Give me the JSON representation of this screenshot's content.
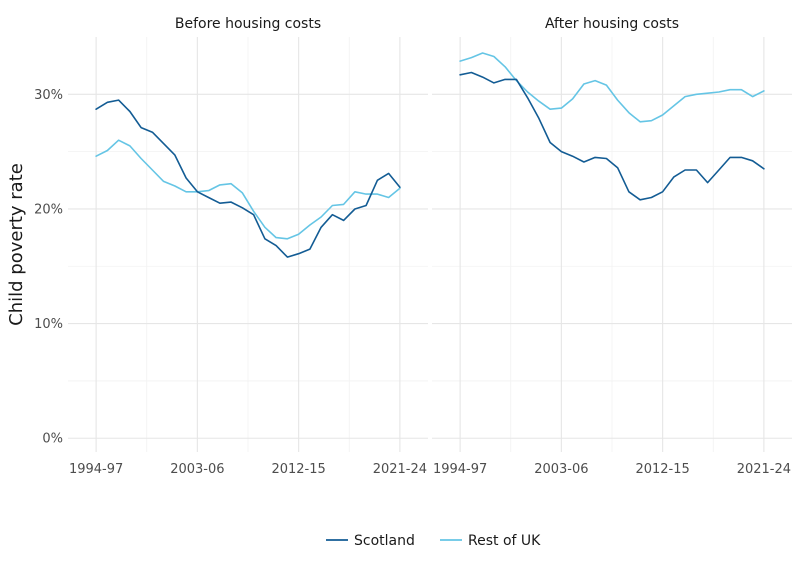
{
  "chart_data": {
    "type": "line",
    "ylabel": "Child poverty rate",
    "ylim": [
      -0.012,
      0.35
    ],
    "yticks": [
      0,
      0.1,
      0.2,
      0.3
    ],
    "ytick_labels": [
      "0%",
      "10%",
      "20%",
      "30%"
    ],
    "xticks": [
      0,
      9,
      18,
      27
    ],
    "xtick_labels": [
      "1994-97",
      "2003-06",
      "2012-15",
      "2021-24"
    ],
    "xlim": [
      -2.5,
      29.5
    ],
    "legend_position": "bottom",
    "series_styles": [
      {
        "name": "Scotland",
        "color": "#135c94"
      },
      {
        "name": "Rest of UK",
        "color": "#65c5e5"
      }
    ],
    "panels": [
      {
        "title": "Before housing costs",
        "series": [
          {
            "name": "Scotland",
            "values": [
              0.287,
              0.293,
              0.295,
              0.285,
              0.271,
              0.267,
              0.257,
              0.247,
              0.227,
              0.215,
              0.21,
              0.205,
              0.206,
              0.201,
              0.195,
              0.174,
              0.168,
              0.158,
              0.161,
              0.165,
              0.184,
              0.195,
              0.19,
              0.2,
              0.203,
              0.225,
              0.231,
              0.219
            ]
          },
          {
            "name": "Rest of UK",
            "values": [
              0.246,
              0.251,
              0.26,
              0.255,
              0.244,
              0.234,
              0.224,
              0.22,
              0.215,
              0.215,
              0.216,
              0.221,
              0.222,
              0.214,
              0.198,
              0.184,
              0.175,
              0.174,
              0.178,
              0.186,
              0.193,
              0.203,
              0.204,
              0.215,
              0.213,
              0.213,
              0.21,
              0.218
            ]
          }
        ]
      },
      {
        "title": "After housing costs",
        "series": [
          {
            "name": "Scotland",
            "values": [
              0.317,
              0.319,
              0.315,
              0.31,
              0.313,
              0.313,
              0.297,
              0.279,
              0.258,
              0.25,
              0.246,
              0.241,
              0.245,
              0.244,
              0.236,
              0.215,
              0.208,
              0.21,
              0.215,
              0.228,
              0.234,
              0.234,
              0.223,
              0.234,
              0.245,
              0.245,
              0.242,
              0.235
            ]
          },
          {
            "name": "Rest of UK",
            "values": [
              0.329,
              0.332,
              0.336,
              0.333,
              0.324,
              0.312,
              0.302,
              0.294,
              0.287,
              0.288,
              0.296,
              0.309,
              0.312,
              0.308,
              0.295,
              0.284,
              0.276,
              0.277,
              0.282,
              0.29,
              0.298,
              0.3,
              0.301,
              0.302,
              0.304,
              0.304,
              0.298,
              0.303
            ]
          }
        ]
      }
    ]
  }
}
